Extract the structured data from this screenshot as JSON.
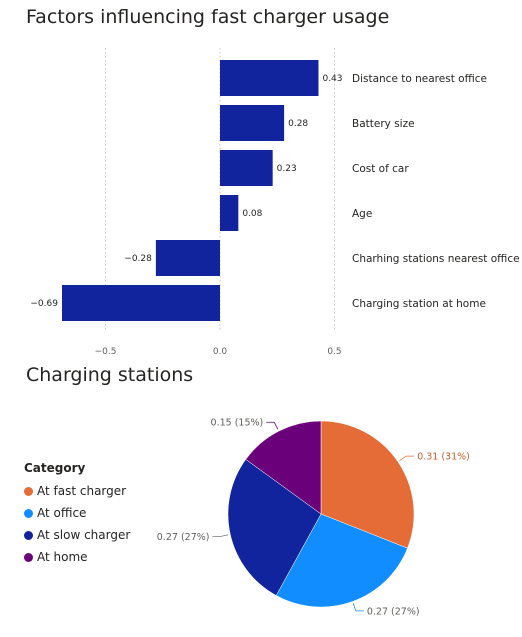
{
  "chart_data": [
    {
      "type": "bar",
      "orientation": "horizontal",
      "title": "Factors influencing fast charger usage",
      "categories": [
        "Distance to nearest office",
        "Battery size",
        "Cost of car",
        "Age",
        "Charhing stations nearest office",
        "Charging station at home"
      ],
      "values": [
        0.43,
        0.28,
        0.23,
        0.08,
        -0.28,
        -0.69
      ],
      "value_labels": [
        "0.43",
        "0.28",
        "0.23",
        "0.08",
        "−0.28",
        "−0.69"
      ],
      "ticks": [
        "−0.5",
        "0.0",
        "0.5"
      ],
      "xlim": [
        -0.7,
        0.5
      ],
      "gridlines": "vertical dotted",
      "color": "#12239E"
    },
    {
      "type": "pie",
      "title": "Charging stations",
      "legend_title": "Category",
      "legend_position": "left",
      "slices": [
        {
          "name": "At fast charger",
          "value": 0.31,
          "label": "0.31 (31%)",
          "color": "#E66C37"
        },
        {
          "name": "At office",
          "value": 0.27,
          "label": "0.27 (27%)",
          "color": "#118DFF"
        },
        {
          "name": "At slow charger",
          "value": 0.27,
          "label": "0.27 (27%)",
          "color": "#12239E"
        },
        {
          "name": "At home",
          "value": 0.15,
          "label": "0.15 (15%)",
          "color": "#6B007B"
        }
      ]
    }
  ]
}
